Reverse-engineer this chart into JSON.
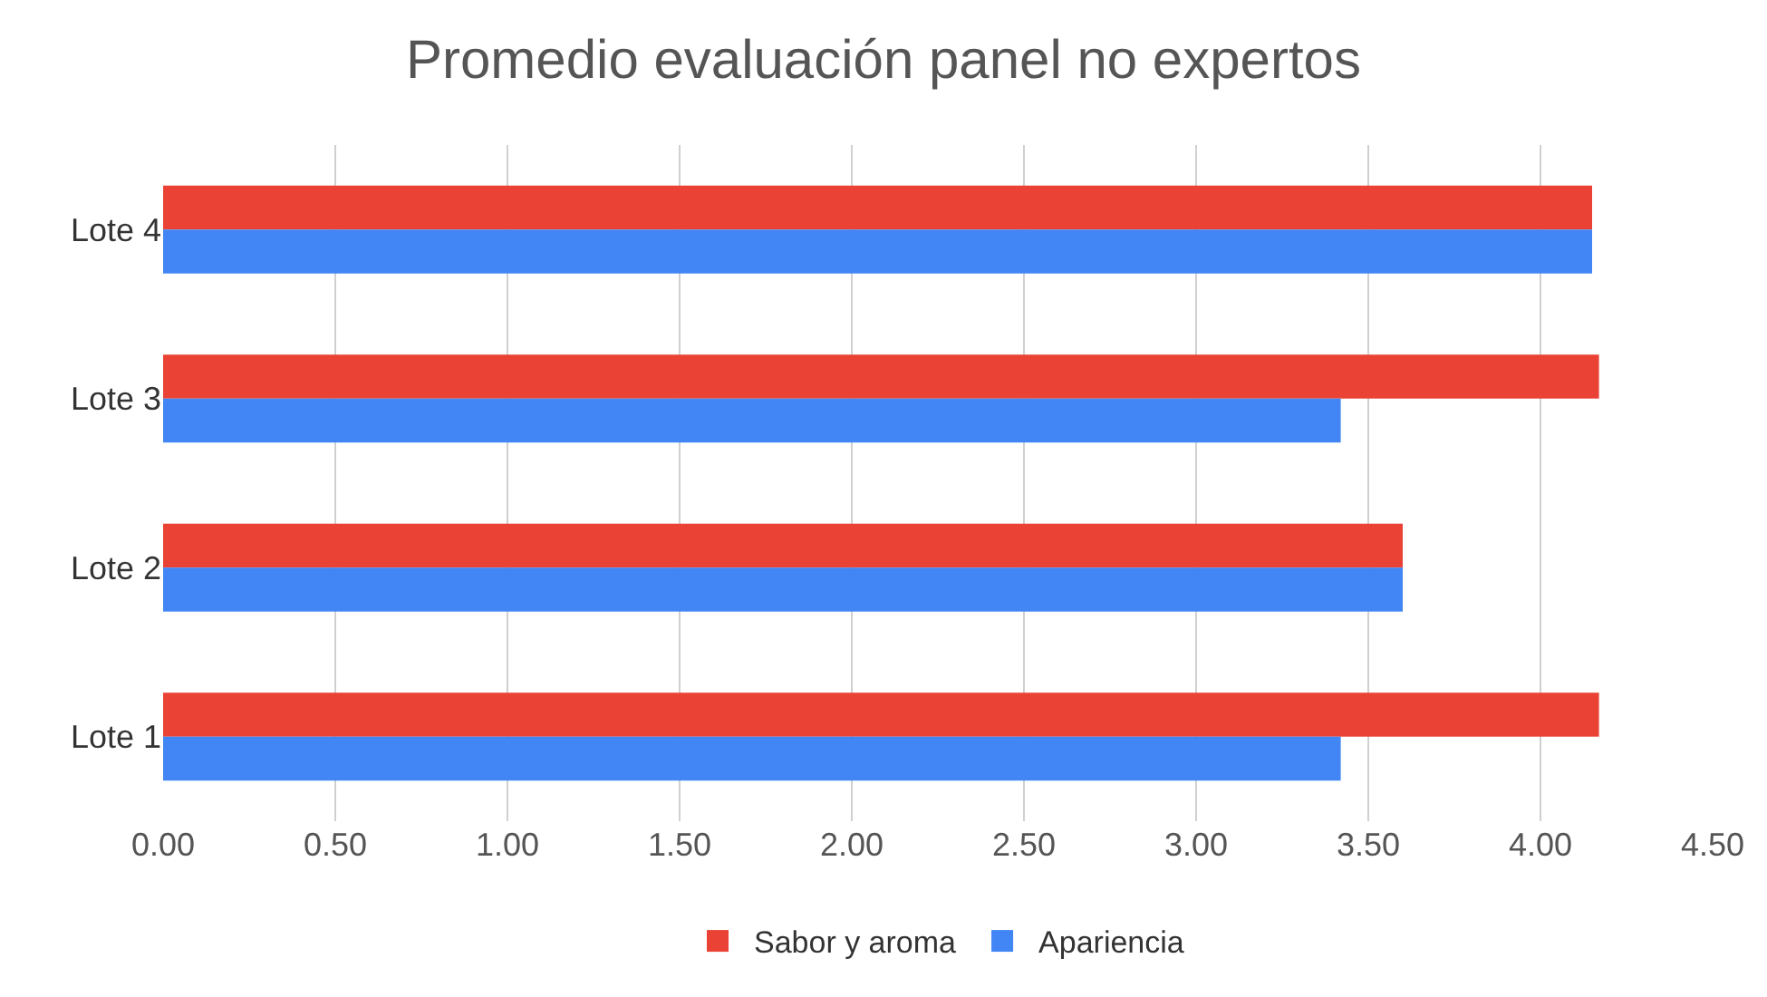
{
  "chart_data": {
    "type": "bar",
    "orientation": "horizontal",
    "title": "Promedio evaluación panel no expertos",
    "categories": [
      "Lote 4",
      "Lote 3",
      "Lote 2",
      "Lote 1"
    ],
    "series": [
      {
        "name": "Sabor y aroma",
        "color": "#ea4335",
        "values": [
          4.15,
          4.17,
          3.6,
          4.17
        ]
      },
      {
        "name": "Apariencia",
        "color": "#4285f4",
        "values": [
          4.15,
          3.42,
          3.6,
          3.42
        ]
      }
    ],
    "xlim": [
      0,
      4.5
    ],
    "xticks": [
      {
        "value": 0,
        "label": "0.00"
      },
      {
        "value": 0.5,
        "label": "0.50"
      },
      {
        "value": 1,
        "label": "1.00"
      },
      {
        "value": 1.5,
        "label": "1.50"
      },
      {
        "value": 2,
        "label": "2.00"
      },
      {
        "value": 2.5,
        "label": "2.50"
      },
      {
        "value": 3,
        "label": "3.00"
      },
      {
        "value": 3.5,
        "label": "3.50"
      },
      {
        "value": 4,
        "label": "4.00"
      },
      {
        "value": 4.5,
        "label": "4.50"
      }
    ],
    "grid": "x",
    "legend": "bottom"
  }
}
